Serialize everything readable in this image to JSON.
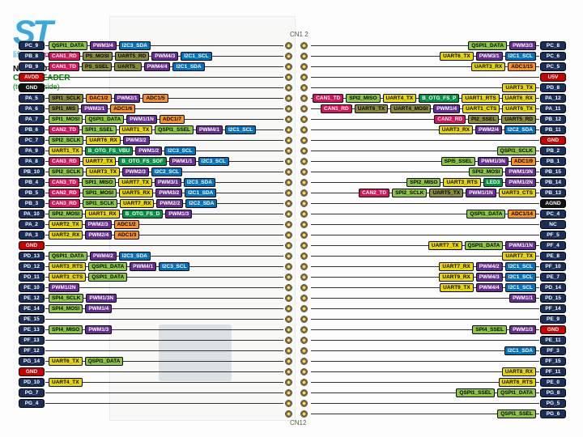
{
  "meta": {
    "brand_text": "ST",
    "tagline_life": "life",
    "tagline_aug": ".augmented",
    "title": "NUCLEO-F413ZH",
    "subtitle": "CN12 HEADER",
    "note": "(top right side)",
    "connector_top": "CN1 2",
    "connector_bottom": "CN12"
  },
  "colors": {
    "pin_default": "#1a2e5a",
    "power": "#c40000",
    "gnd": "#111",
    "spi": "#8dc63f",
    "uart": "#e8d800",
    "i2c": "#0071bc",
    "pwm": "#662d91",
    "adc": "#f7931e",
    "usb": "#009245",
    "can": "#d4145a",
    "led": "#009245"
  },
  "rows_left": [
    {
      "pin": "PC_9",
      "c": "navy",
      "f": [
        {
          "t": "QSPI1_DATA",
          "c": "lime"
        },
        {
          "t": "PWM3/4",
          "c": "purple"
        },
        {
          "t": "I2C3_SDA",
          "c": "blue"
        }
      ]
    },
    {
      "pin": "PB_8",
      "c": "navy",
      "f": [
        {
          "t": "CAN1_RD",
          "c": "magenta"
        },
        {
          "t": "PS_MOSI",
          "c": "olive"
        },
        {
          "t": "UART5_RD",
          "c": "olive"
        },
        {
          "t": "PWM4/3",
          "c": "purple"
        },
        {
          "t": "I2C1_SCL",
          "c": "blue"
        }
      ]
    },
    {
      "pin": "PB_9",
      "c": "navy",
      "f": [
        {
          "t": "CAN1_TD",
          "c": "magenta"
        },
        {
          "t": "PS_SSEL",
          "c": "olive"
        },
        {
          "t": "UART5_",
          "c": "olive"
        },
        {
          "t": "PWM4/4",
          "c": "purple"
        },
        {
          "t": "I2C1_SDA",
          "c": "blue"
        }
      ]
    },
    {
      "pin": "AVDD",
      "c": "red",
      "f": []
    },
    {
      "pin": "GND",
      "c": "black",
      "f": []
    },
    {
      "pin": "PA_5",
      "c": "navy",
      "f": [
        {
          "t": "SPI1_SCLK",
          "c": "olive"
        },
        {
          "t": "DAC1/2",
          "c": "orange"
        },
        {
          "t": "PWM2/1",
          "c": "purple"
        },
        {
          "t": "ADC1/5",
          "c": "orange"
        }
      ]
    },
    {
      "pin": "PA_6",
      "c": "navy",
      "f": [
        {
          "t": "SPI1_MIS",
          "c": "olive"
        },
        {
          "t": "PWM3/1",
          "c": "purple"
        },
        {
          "t": "ADC1/6",
          "c": "orange"
        }
      ]
    },
    {
      "pin": "PA_7",
      "c": "navy",
      "f": [
        {
          "t": "SPI1_MOSI",
          "c": "lime"
        },
        {
          "t": "QSPI1_DATA",
          "c": "lime"
        },
        {
          "t": "PWM1/1N",
          "c": "purple"
        },
        {
          "t": "ADC1/7",
          "c": "orange"
        }
      ]
    },
    {
      "pin": "PB_6",
      "c": "navy",
      "f": [
        {
          "t": "CAN2_TD",
          "c": "magenta"
        },
        {
          "t": "SPI1_SSEL",
          "c": "lime"
        },
        {
          "t": "UART1_TX",
          "c": "yellow"
        },
        {
          "t": "QSPI1_SSEL",
          "c": "lime"
        },
        {
          "t": "PWM4/1",
          "c": "purple"
        },
        {
          "t": "I2C1_SCL",
          "c": "blue"
        }
      ]
    },
    {
      "pin": "PC_7",
      "c": "navy",
      "f": [
        {
          "t": "SPI2_SCLK",
          "c": "lime"
        },
        {
          "t": "UART6_RX",
          "c": "yellow"
        },
        {
          "t": "PWM3/2",
          "c": "purple"
        }
      ]
    },
    {
      "pin": "PA_9",
      "c": "navy",
      "f": [
        {
          "t": "UART1_TX",
          "c": "yellow"
        },
        {
          "t": "B_OTG_FS_VBU",
          "c": "green"
        },
        {
          "t": "PWM1/2",
          "c": "purple"
        },
        {
          "t": "I2C3_SCL",
          "c": "blue"
        }
      ]
    },
    {
      "pin": "PA_8",
      "c": "navy",
      "f": [
        {
          "t": "CAN3_RD",
          "c": "magenta"
        },
        {
          "t": "UART7_TX",
          "c": "yellow"
        },
        {
          "t": "B_OTG_FS_SOF",
          "c": "green"
        },
        {
          "t": "PWM1/1",
          "c": "purple"
        },
        {
          "t": "I2C3_SCL",
          "c": "blue"
        }
      ]
    },
    {
      "pin": "PB_10",
      "c": "navy",
      "f": [
        {
          "t": "SPI2_SCLK",
          "c": "lime"
        },
        {
          "t": "UART3_TX",
          "c": "yellow"
        },
        {
          "t": "PWM2/3",
          "c": "purple"
        },
        {
          "t": "I2C2_SCL",
          "c": "blue"
        }
      ]
    },
    {
      "pin": "PB_4",
      "c": "navy",
      "f": [
        {
          "t": "CAN3_TD",
          "c": "magenta"
        },
        {
          "t": "SPI1_MISO",
          "c": "lime"
        },
        {
          "t": "UART7_TX",
          "c": "yellow"
        },
        {
          "t": "PWM3/1",
          "c": "purple"
        },
        {
          "t": "I2C3_SDA",
          "c": "blue"
        }
      ]
    },
    {
      "pin": "PB_5",
      "c": "navy",
      "f": [
        {
          "t": "CAN2_RD",
          "c": "magenta"
        },
        {
          "t": "SPI1_MOSI",
          "c": "lime"
        },
        {
          "t": "UART5_RX",
          "c": "yellow"
        },
        {
          "t": "PWM3/2",
          "c": "purple"
        },
        {
          "t": "I2C1_SDA",
          "c": "blue"
        }
      ]
    },
    {
      "pin": "PB_3",
      "c": "navy",
      "f": [
        {
          "t": "CAN3_RD",
          "c": "magenta"
        },
        {
          "t": "SPI1_SCLK",
          "c": "lime"
        },
        {
          "t": "UART7_RX",
          "c": "yellow"
        },
        {
          "t": "PWM2/2",
          "c": "purple"
        },
        {
          "t": "I2C2_SDA",
          "c": "blue"
        }
      ]
    },
    {
      "pin": "PA_10",
      "c": "navy",
      "f": [
        {
          "t": "SPI2_MOSI",
          "c": "lime"
        },
        {
          "t": "UART1_RX",
          "c": "yellow"
        },
        {
          "t": "B_OTG_FS_D",
          "c": "green"
        },
        {
          "t": "PWM1/3",
          "c": "purple"
        }
      ]
    },
    {
      "pin": "PA_2",
      "c": "navy",
      "f": [
        {
          "t": "UART2_TX",
          "c": "yellow"
        },
        {
          "t": "PWM2/3",
          "c": "purple"
        },
        {
          "t": "ADC1/2",
          "c": "orange"
        }
      ]
    },
    {
      "pin": "PA_3",
      "c": "navy",
      "f": [
        {
          "t": "UART2_RX",
          "c": "yellow"
        },
        {
          "t": "PWM2/4",
          "c": "purple"
        },
        {
          "t": "ADC1/3",
          "c": "orange"
        }
      ]
    },
    {
      "pin": "GND",
      "c": "red",
      "f": []
    },
    {
      "pin": "PD_13",
      "c": "navy",
      "f": [
        {
          "t": "QSPI1_DATA",
          "c": "lime"
        },
        {
          "t": "PWM4/2",
          "c": "purple"
        },
        {
          "t": "I2C3_SDA",
          "c": "blue"
        }
      ]
    },
    {
      "pin": "PD_12",
      "c": "navy",
      "f": [
        {
          "t": "UART3_RTS",
          "c": "yellow"
        },
        {
          "t": "QSPI1_DATA",
          "c": "lime"
        },
        {
          "t": "PWM4/1",
          "c": "purple"
        },
        {
          "t": "I2C3_SCL",
          "c": "blue"
        }
      ]
    },
    {
      "pin": "PD_11",
      "c": "navy",
      "f": [
        {
          "t": "UART3_CTS",
          "c": "yellow"
        },
        {
          "t": "QSPI1_DATA",
          "c": "lime"
        }
      ]
    },
    {
      "pin": "PE_10",
      "c": "navy",
      "f": [
        {
          "t": "PWM1/2N",
          "c": "purple"
        }
      ]
    },
    {
      "pin": "PE_12",
      "c": "navy",
      "f": [
        {
          "t": "SPI4_SCLK",
          "c": "lime"
        },
        {
          "t": "PWM1/3N",
          "c": "purple"
        }
      ]
    },
    {
      "pin": "PE_14",
      "c": "navy",
      "f": [
        {
          "t": "SPI4_MOSI",
          "c": "lime"
        },
        {
          "t": "PWM1/4",
          "c": "purple"
        }
      ]
    },
    {
      "pin": "PE_15",
      "c": "navy",
      "f": []
    },
    {
      "pin": "PE_13",
      "c": "navy",
      "f": [
        {
          "t": "SPI4_MISO",
          "c": "lime"
        },
        {
          "t": "PWM1/3",
          "c": "purple"
        }
      ]
    },
    {
      "pin": "PF_13",
      "c": "navy",
      "f": []
    },
    {
      "pin": "PF_12",
      "c": "navy",
      "f": []
    },
    {
      "pin": "PG_14",
      "c": "navy",
      "f": [
        {
          "t": "UART6_TX",
          "c": "yellow"
        },
        {
          "t": "QSPI1_DATA",
          "c": "lime"
        }
      ]
    },
    {
      "pin": "GND",
      "c": "red",
      "f": []
    },
    {
      "pin": "PD_10",
      "c": "navy",
      "f": [
        {
          "t": "UART4_TX",
          "c": "yellow"
        }
      ]
    },
    {
      "pin": "PG_7",
      "c": "navy",
      "f": []
    },
    {
      "pin": "PG_4",
      "c": "navy",
      "f": []
    }
  ],
  "rows_right": [
    {
      "pin": "PC_8",
      "c": "navy",
      "f": [
        {
          "t": "PWM3/3",
          "c": "purple"
        },
        {
          "t": "QSPI1_DATA",
          "c": "lime"
        }
      ]
    },
    {
      "pin": "PC_6",
      "c": "navy",
      "f": [
        {
          "t": "I2C1_SCL",
          "c": "blue"
        },
        {
          "t": "PWM3/1",
          "c": "purple"
        },
        {
          "t": "UART6_TX",
          "c": "yellow"
        }
      ]
    },
    {
      "pin": "PC_5",
      "c": "navy",
      "f": [
        {
          "t": "ADC1/15",
          "c": "orange"
        },
        {
          "t": "UART3_RX",
          "c": "yellow"
        }
      ]
    },
    {
      "pin": "U5V",
      "c": "red",
      "f": []
    },
    {
      "pin": "PD_8",
      "c": "navy",
      "f": [
        {
          "t": "UART3_TX",
          "c": "yellow"
        }
      ]
    },
    {
      "pin": "PA_12",
      "c": "navy",
      "f": [
        {
          "t": "UART6_RX",
          "c": "yellow"
        },
        {
          "t": "UART1_RTS",
          "c": "yellow"
        },
        {
          "t": "B_OTG_FS_P",
          "c": "green"
        },
        {
          "t": "UART4_TX",
          "c": "yellow"
        },
        {
          "t": "SPI2_MISO",
          "c": "lime"
        },
        {
          "t": "CAN1_TD",
          "c": "magenta"
        }
      ]
    },
    {
      "pin": "PA_11",
      "c": "navy",
      "f": [
        {
          "t": "UART6_TX",
          "c": "yellow"
        },
        {
          "t": "UART1_CTS",
          "c": "yellow"
        },
        {
          "t": "PWM1/4",
          "c": "purple"
        },
        {
          "t": "UART4_MOSI",
          "c": "olive"
        },
        {
          "t": "UART6_TX",
          "c": "olive"
        },
        {
          "t": "CAN1_RD",
          "c": "magenta"
        }
      ]
    },
    {
      "pin": "PB_12",
      "c": "navy",
      "f": [
        {
          "t": "UART5_RD",
          "c": "olive"
        },
        {
          "t": "PI2_SSEL",
          "c": "olive"
        },
        {
          "t": "CAN2_RD",
          "c": "magenta"
        }
      ]
    },
    {
      "pin": "PB_11",
      "c": "navy",
      "f": [
        {
          "t": "I2C2_SDA",
          "c": "blue"
        },
        {
          "t": "PWM2/4",
          "c": "purple"
        },
        {
          "t": "UART3_RX",
          "c": "yellow"
        }
      ]
    },
    {
      "pin": "GND",
      "c": "red",
      "f": []
    },
    {
      "pin": "PB_2",
      "c": "navy",
      "f": [
        {
          "t": "QSPI1_SCLK",
          "c": "lime"
        }
      ]
    },
    {
      "pin": "PB_1",
      "c": "navy",
      "f": [
        {
          "t": "ADC1/9",
          "c": "orange"
        },
        {
          "t": "PWM1/3N",
          "c": "purple"
        },
        {
          "t": "SPI5_SSEL",
          "c": "lime"
        }
      ]
    },
    {
      "pin": "PB_15",
      "c": "navy",
      "f": [
        {
          "t": "PWM1/3N",
          "c": "purple"
        },
        {
          "t": "SPI2_MOSI",
          "c": "lime"
        }
      ]
    },
    {
      "pin": "PB_14",
      "c": "navy",
      "f": [
        {
          "t": "PWM1/2N",
          "c": "purple"
        },
        {
          "t": "LED3",
          "c": "green"
        },
        {
          "t": "UART3_RTS",
          "c": "yellow"
        },
        {
          "t": "SPI2_MISO",
          "c": "lime"
        }
      ]
    },
    {
      "pin": "PB_13",
      "c": "navy",
      "f": [
        {
          "t": "UART3_CTS",
          "c": "yellow"
        },
        {
          "t": "PWM1/1N",
          "c": "purple"
        },
        {
          "t": "UART5_TX",
          "c": "olive"
        },
        {
          "t": "SPI2_SCLK",
          "c": "lime"
        },
        {
          "t": "CAN2_TD",
          "c": "magenta"
        }
      ]
    },
    {
      "pin": "AGND",
      "c": "black",
      "f": []
    },
    {
      "pin": "PC_4",
      "c": "navy",
      "f": [
        {
          "t": "ADC1/14",
          "c": "orange"
        },
        {
          "t": "QSPI1_DATA",
          "c": "lime"
        }
      ]
    },
    {
      "pin": "NC",
      "c": "navy",
      "f": []
    },
    {
      "pin": "PF_5",
      "c": "navy",
      "f": []
    },
    {
      "pin": "PF_4",
      "c": "navy",
      "f": [
        {
          "t": "PWM1/1N",
          "c": "purple"
        },
        {
          "t": "QSPI1_DATA",
          "c": "lime"
        },
        {
          "t": "UART7_TX",
          "c": "yellow"
        }
      ]
    },
    {
      "pin": "PE_8",
      "c": "navy",
      "f": [
        {
          "t": "UART7_TX",
          "c": "yellow"
        }
      ]
    },
    {
      "pin": "PF_10",
      "c": "navy",
      "f": [
        {
          "t": "I2C1_SCL",
          "c": "blue"
        },
        {
          "t": "PWM4/2",
          "c": "purple"
        },
        {
          "t": "UART7_RX",
          "c": "yellow"
        }
      ]
    },
    {
      "pin": "PE_7",
      "c": "navy",
      "f": [
        {
          "t": "I2C1_SCL",
          "c": "blue"
        },
        {
          "t": "PWM4/3",
          "c": "purple"
        },
        {
          "t": "UART9_RX",
          "c": "yellow"
        }
      ]
    },
    {
      "pin": "PD_14",
      "c": "navy",
      "f": [
        {
          "t": "I2C1_SCL",
          "c": "blue"
        },
        {
          "t": "PWM4/4",
          "c": "purple"
        },
        {
          "t": "UART9_TX",
          "c": "yellow"
        }
      ]
    },
    {
      "pin": "PD_15",
      "c": "navy",
      "f": [
        {
          "t": "PWM1/1",
          "c": "purple"
        }
      ]
    },
    {
      "pin": "PF_14",
      "c": "navy",
      "f": []
    },
    {
      "pin": "PE_9",
      "c": "navy",
      "f": []
    },
    {
      "pin": "GND",
      "c": "red",
      "f": [
        {
          "t": "PWM1/3",
          "c": "purple"
        },
        {
          "t": "SPI4_SSEL",
          "c": "lime"
        }
      ]
    },
    {
      "pin": "PE_11",
      "c": "navy",
      "f": []
    },
    {
      "pin": "PF_3",
      "c": "navy",
      "f": [
        {
          "t": "I2C1_SDA",
          "c": "blue"
        }
      ]
    },
    {
      "pin": "PF_15",
      "c": "navy",
      "f": []
    },
    {
      "pin": "PF_11",
      "c": "navy",
      "f": [
        {
          "t": "UART8_RX",
          "c": "yellow"
        }
      ]
    },
    {
      "pin": "PE_0",
      "c": "navy",
      "f": [
        {
          "t": "UART6_RTS",
          "c": "yellow"
        }
      ]
    },
    {
      "pin": "PG_8",
      "c": "navy",
      "f": [
        {
          "t": "QSPI1_DATA",
          "c": "lime"
        },
        {
          "t": "QSPI1_SSEL",
          "c": "lime"
        }
      ]
    },
    {
      "pin": "PG_5",
      "c": "navy",
      "f": []
    },
    {
      "pin": "PG_6",
      "c": "navy",
      "f": [
        {
          "t": "QSPI1_SSEL",
          "c": "lime"
        }
      ]
    }
  ]
}
